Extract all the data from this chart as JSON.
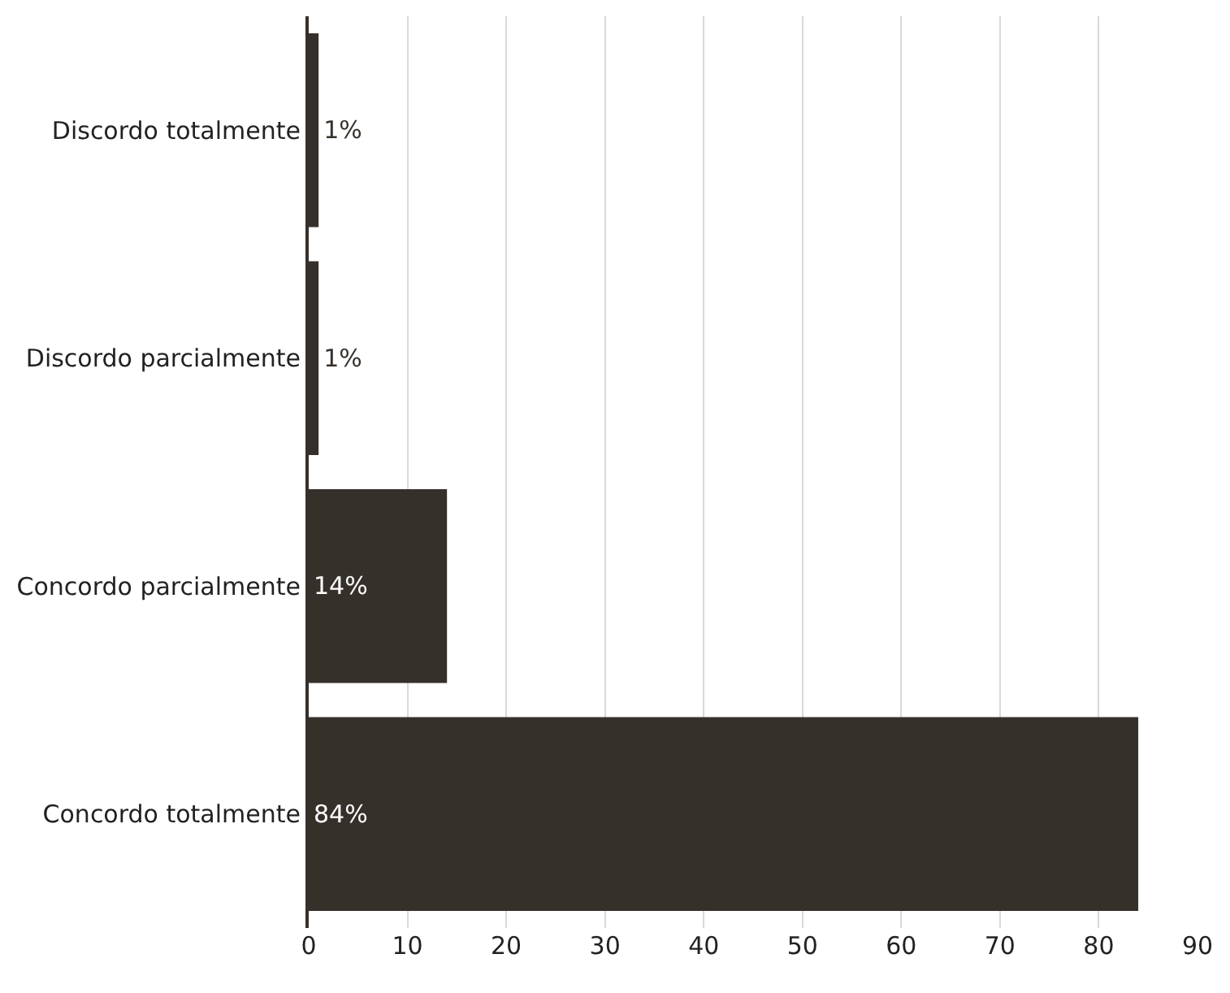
{
  "chart_data": {
    "type": "bar",
    "orientation": "horizontal",
    "categories": [
      "Discordo totalmente",
      "Discordo parcialmente",
      "Concordo parcialmente",
      "Concordo totalmente"
    ],
    "values": [
      1,
      1,
      14,
      84
    ],
    "value_labels": [
      "1%",
      "1%",
      "14%",
      "84%"
    ],
    "color": "#36302a",
    "xlim": [
      0,
      90
    ],
    "xticks": [
      0,
      10,
      20,
      30,
      40,
      50,
      60,
      70,
      80,
      90
    ],
    "grid": "x",
    "legend": false
  }
}
